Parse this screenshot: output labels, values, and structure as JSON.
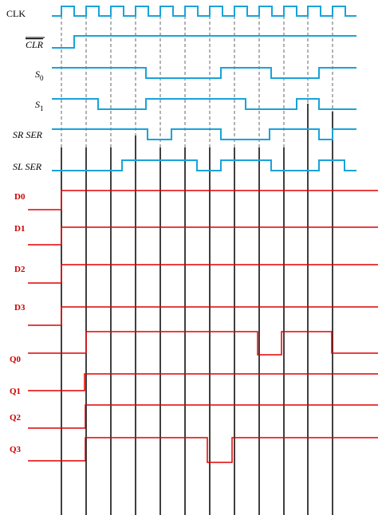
{
  "signals": [
    {
      "name": "CLK"
    },
    {
      "name": "CLR"
    },
    {
      "name": "S",
      "subscript": "0"
    },
    {
      "name": "S",
      "subscript": "1"
    },
    {
      "name": "SR SER"
    },
    {
      "name": "SL SER"
    }
  ],
  "inputs": [
    "D0",
    "D1",
    "D2",
    "D3"
  ],
  "outputs": [
    "Q0",
    "Q1",
    "Q2",
    "Q3"
  ]
}
